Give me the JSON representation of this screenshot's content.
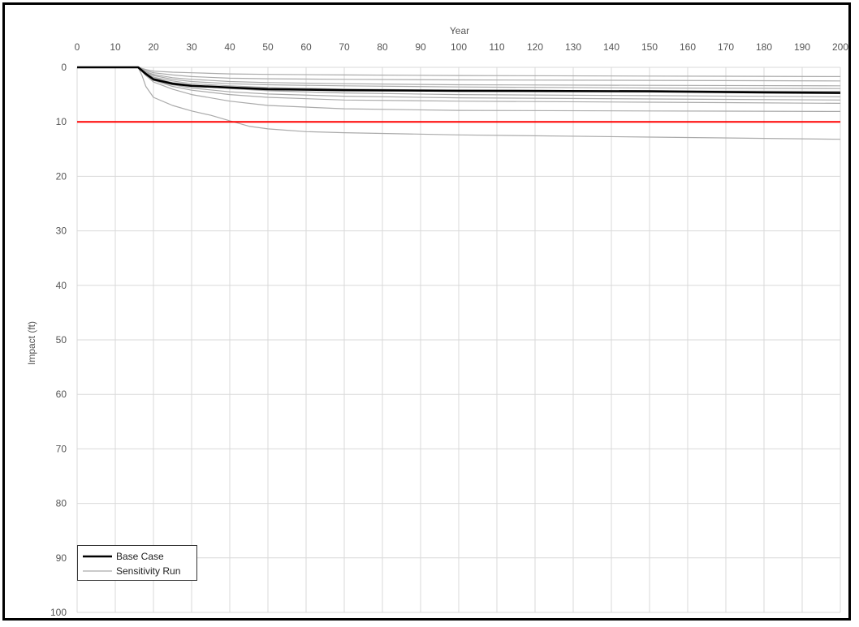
{
  "chart_data": {
    "type": "line",
    "xlabel": "Year",
    "ylabel": "Impact (ft)",
    "xlim": [
      0,
      200
    ],
    "ylim": [
      0,
      100
    ],
    "y_inverted": true,
    "x_axis_position": "top",
    "grid": true,
    "x_ticks": [
      "0",
      "10",
      "20",
      "30",
      "40",
      "50",
      "60",
      "70",
      "80",
      "90",
      "100",
      "110",
      "120",
      "130",
      "140",
      "150",
      "160",
      "170",
      "180",
      "190",
      "200"
    ],
    "y_ticks": [
      "0",
      "10",
      "20",
      "30",
      "40",
      "50",
      "60",
      "70",
      "80",
      "90",
      "100"
    ],
    "threshold": {
      "y": 10,
      "color": "#ff0000"
    },
    "legend": {
      "position": "bottom-left",
      "entries": [
        {
          "label": "Base Case",
          "color": "#000000"
        },
        {
          "label": "Sensitivity Run",
          "color": "#aaaaaa"
        }
      ]
    },
    "series": [
      {
        "role": "base",
        "color": "#000000",
        "points": [
          [
            0,
            0
          ],
          [
            16,
            0
          ],
          [
            18,
            1.2
          ],
          [
            20,
            2.2
          ],
          [
            25,
            3
          ],
          [
            30,
            3.4
          ],
          [
            40,
            3.7
          ],
          [
            50,
            4
          ],
          [
            70,
            4.2
          ],
          [
            100,
            4.3
          ],
          [
            150,
            4.4
          ],
          [
            180,
            4.6
          ],
          [
            200,
            4.7
          ]
        ]
      },
      {
        "role": "sensitivity",
        "color": "#aaaaaa",
        "points": [
          [
            0,
            0
          ],
          [
            16,
            0
          ],
          [
            17,
            1.5
          ],
          [
            18,
            3.5
          ],
          [
            20,
            5.5
          ],
          [
            25,
            7
          ],
          [
            30,
            8
          ],
          [
            35,
            8.8
          ],
          [
            40,
            9.8
          ],
          [
            45,
            10.8
          ],
          [
            50,
            11.3
          ],
          [
            60,
            11.8
          ],
          [
            70,
            12
          ],
          [
            100,
            12.4
          ],
          [
            150,
            12.8
          ],
          [
            200,
            13.2
          ]
        ]
      },
      {
        "role": "sensitivity",
        "color": "#aaaaaa",
        "points": [
          [
            0,
            0
          ],
          [
            16,
            0
          ],
          [
            18,
            1.5
          ],
          [
            20,
            2.7
          ],
          [
            25,
            4
          ],
          [
            30,
            5
          ],
          [
            40,
            6.2
          ],
          [
            50,
            7
          ],
          [
            70,
            7.6
          ],
          [
            100,
            7.9
          ],
          [
            150,
            8
          ],
          [
            200,
            8.1
          ]
        ]
      },
      {
        "role": "sensitivity",
        "color": "#aaaaaa",
        "points": [
          [
            0,
            0
          ],
          [
            16,
            0
          ],
          [
            18,
            1.3
          ],
          [
            20,
            2.4
          ],
          [
            25,
            3.5
          ],
          [
            30,
            4.2
          ],
          [
            40,
            5
          ],
          [
            50,
            5.5
          ],
          [
            70,
            6
          ],
          [
            100,
            6.2
          ],
          [
            150,
            6.4
          ],
          [
            200,
            6.6
          ]
        ]
      },
      {
        "role": "sensitivity",
        "color": "#aaaaaa",
        "points": [
          [
            0,
            0
          ],
          [
            16,
            0
          ],
          [
            18,
            1.1
          ],
          [
            20,
            2
          ],
          [
            25,
            2.8
          ],
          [
            30,
            3.3
          ],
          [
            40,
            3.9
          ],
          [
            50,
            4.3
          ],
          [
            70,
            4.7
          ],
          [
            100,
            5
          ],
          [
            150,
            5.2
          ],
          [
            200,
            5.4
          ]
        ]
      },
      {
        "role": "sensitivity",
        "color": "#aaaaaa",
        "points": [
          [
            0,
            0
          ],
          [
            16,
            0
          ],
          [
            18,
            1
          ],
          [
            20,
            1.8
          ],
          [
            25,
            2.5
          ],
          [
            30,
            3
          ],
          [
            40,
            3.4
          ],
          [
            50,
            3.7
          ],
          [
            70,
            4
          ],
          [
            100,
            4.2
          ],
          [
            150,
            4.3
          ],
          [
            200,
            4.4
          ]
        ]
      },
      {
        "role": "sensitivity",
        "color": "#aaaaaa",
        "points": [
          [
            0,
            0
          ],
          [
            16,
            0
          ],
          [
            18,
            0.9
          ],
          [
            20,
            1.5
          ],
          [
            25,
            2.2
          ],
          [
            30,
            2.6
          ],
          [
            40,
            3
          ],
          [
            50,
            3.2
          ],
          [
            70,
            3.4
          ],
          [
            100,
            3.6
          ],
          [
            150,
            3.8
          ],
          [
            200,
            3.9
          ]
        ]
      },
      {
        "role": "sensitivity",
        "color": "#aaaaaa",
        "points": [
          [
            0,
            0
          ],
          [
            16,
            0
          ],
          [
            18,
            0.8
          ],
          [
            20,
            1.3
          ],
          [
            25,
            1.9
          ],
          [
            30,
            2.2
          ],
          [
            40,
            2.6
          ],
          [
            50,
            2.8
          ],
          [
            70,
            3
          ],
          [
            100,
            3.2
          ],
          [
            150,
            3.3
          ],
          [
            200,
            3.4
          ]
        ]
      },
      {
        "role": "sensitivity",
        "color": "#aaaaaa",
        "points": [
          [
            0,
            0
          ],
          [
            16,
            0
          ],
          [
            18,
            0.6
          ],
          [
            20,
            1
          ],
          [
            25,
            1.4
          ],
          [
            30,
            1.7
          ],
          [
            40,
            2
          ],
          [
            50,
            2.1
          ],
          [
            70,
            2.2
          ],
          [
            100,
            2.3
          ],
          [
            150,
            2.4
          ],
          [
            200,
            2.5
          ]
        ]
      },
      {
        "role": "sensitivity",
        "color": "#aaaaaa",
        "points": [
          [
            0,
            0
          ],
          [
            16,
            0
          ],
          [
            18,
            0.4
          ],
          [
            20,
            0.7
          ],
          [
            25,
            0.9
          ],
          [
            30,
            1
          ],
          [
            40,
            1.2
          ],
          [
            50,
            1.3
          ],
          [
            70,
            1.4
          ],
          [
            100,
            1.5
          ],
          [
            150,
            1.6
          ],
          [
            200,
            1.7
          ]
        ]
      },
      {
        "role": "sensitivity",
        "color": "#aaaaaa",
        "points": [
          [
            0,
            0
          ],
          [
            16,
            0
          ],
          [
            18,
            1.2
          ],
          [
            20,
            2.3
          ],
          [
            25,
            3.2
          ],
          [
            30,
            3.8
          ],
          [
            40,
            4.5
          ],
          [
            50,
            4.9
          ],
          [
            70,
            5.3
          ],
          [
            100,
            5.6
          ],
          [
            150,
            5.8
          ],
          [
            200,
            6
          ]
        ]
      }
    ]
  }
}
